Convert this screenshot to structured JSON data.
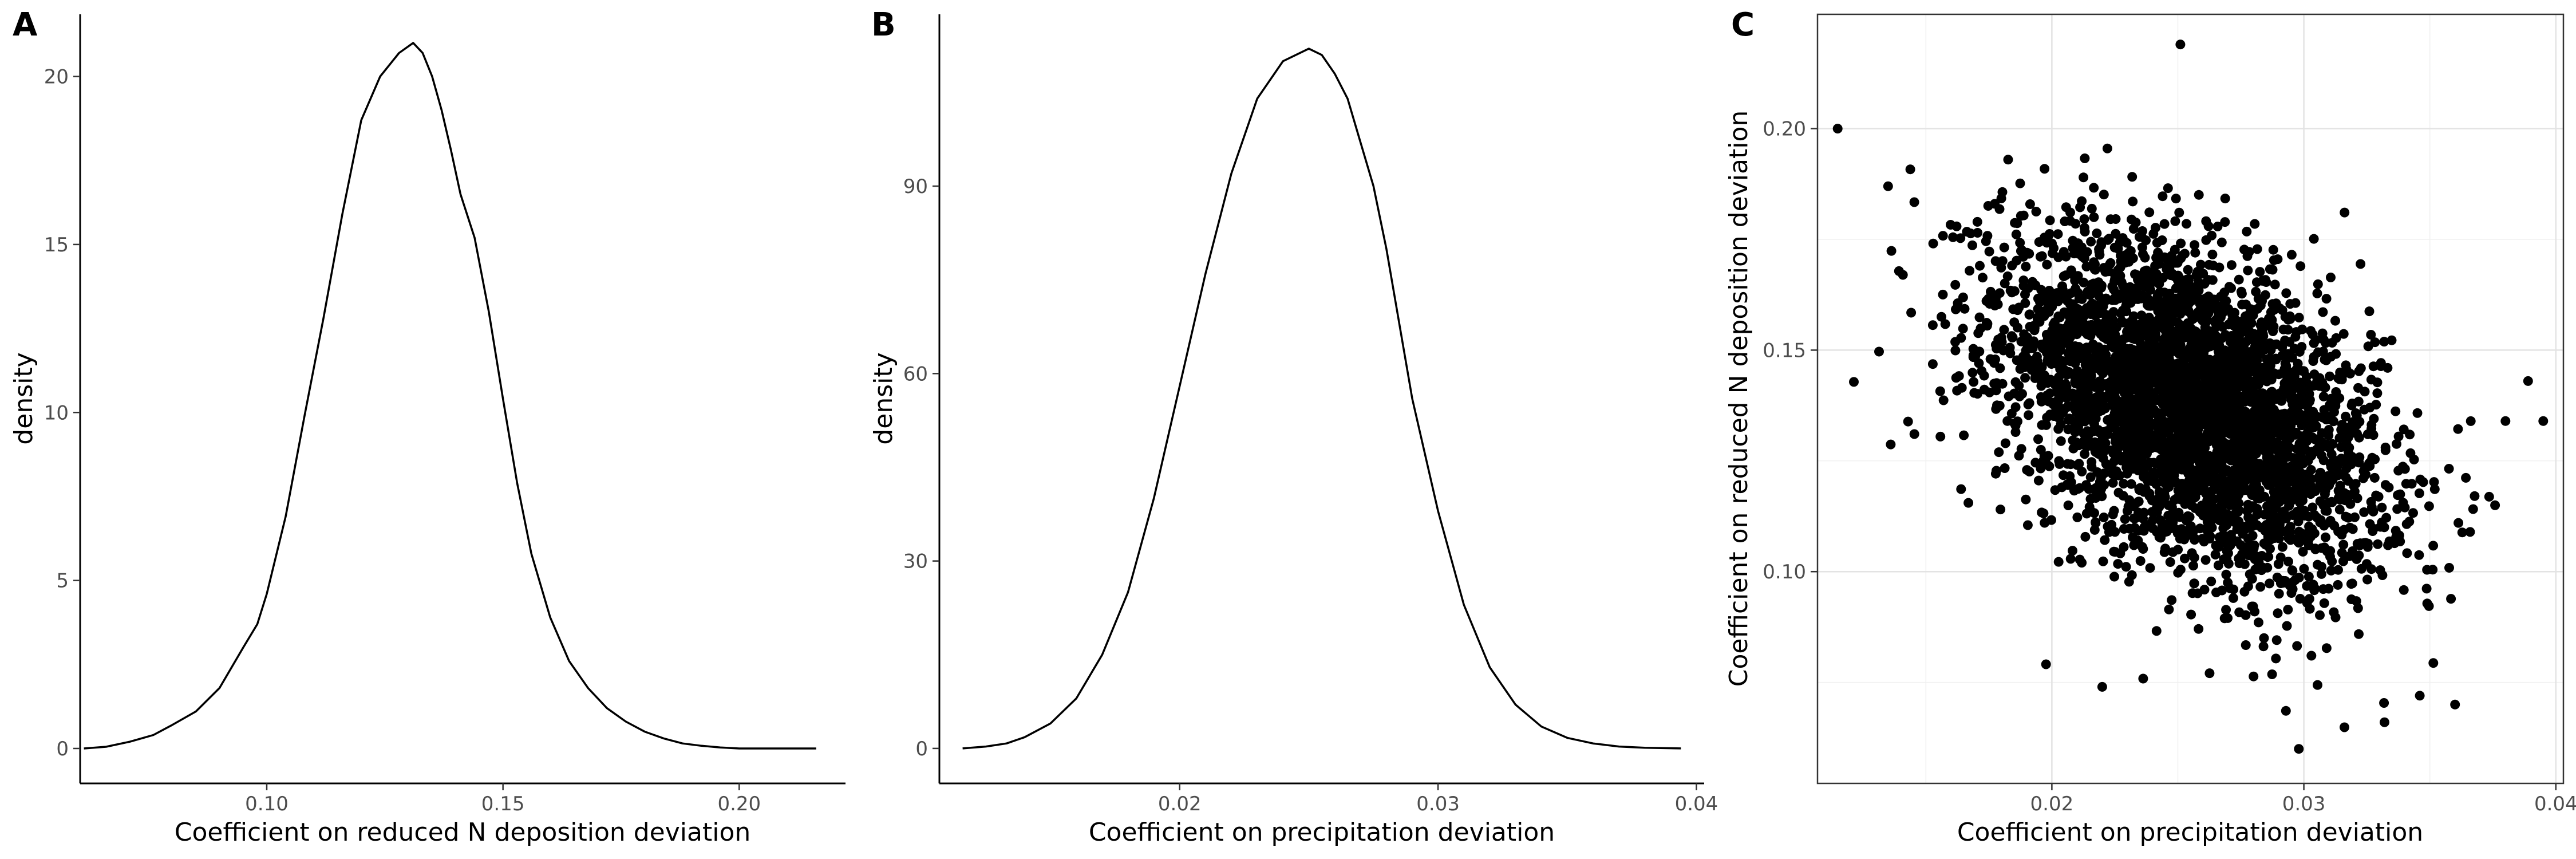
{
  "chart_data": [
    {
      "type": "line",
      "panel": "A",
      "title": "",
      "xlabel": "Coefficient on reduced N deposition deviation",
      "ylabel": "density",
      "xlim": [
        0.0605,
        0.2225
      ],
      "ylim": [
        -1.04,
        21.85
      ],
      "xticks": [
        0.1,
        0.15,
        0.2
      ],
      "xtick_labels": [
        "0.10",
        "0.15",
        "0.20"
      ],
      "yticks": [
        0,
        5,
        10,
        15,
        20
      ],
      "ytick_labels": [
        "0",
        "5",
        "10",
        "15",
        "20"
      ],
      "grid": false,
      "x": [
        0.0613,
        0.066,
        0.071,
        0.076,
        0.08,
        0.085,
        0.09,
        0.095,
        0.098,
        0.1,
        0.104,
        0.108,
        0.112,
        0.116,
        0.12,
        0.124,
        0.128,
        0.131,
        0.133,
        0.135,
        0.137,
        0.139,
        0.141,
        0.144,
        0.147,
        0.15,
        0.153,
        0.156,
        0.16,
        0.164,
        0.168,
        0.172,
        0.176,
        0.18,
        0.184,
        0.188,
        0.192,
        0.196,
        0.2,
        0.205,
        0.21,
        0.2163
      ],
      "y": [
        0.0,
        0.05,
        0.2,
        0.4,
        0.7,
        1.1,
        1.8,
        3.0,
        3.7,
        4.6,
        6.9,
        9.9,
        12.8,
        15.9,
        18.7,
        20.0,
        20.7,
        21.0,
        20.7,
        20.0,
        19.0,
        17.8,
        16.5,
        15.2,
        13.0,
        10.4,
        7.9,
        5.8,
        3.9,
        2.6,
        1.8,
        1.2,
        0.8,
        0.5,
        0.3,
        0.15,
        0.08,
        0.03,
        0.0,
        0.0,
        0.0,
        0.0
      ]
    },
    {
      "type": "line",
      "panel": "B",
      "title": "",
      "xlabel": "Coefficient on precipitation deviation",
      "ylabel": "density",
      "xlim": [
        0.0107,
        0.0403
      ],
      "ylim": [
        -5.6,
        117.5
      ],
      "xticks": [
        0.02,
        0.03,
        0.04
      ],
      "xtick_labels": [
        "0.02",
        "0.03",
        "0.04"
      ],
      "yticks": [
        0,
        30,
        60,
        90
      ],
      "ytick_labels": [
        "0",
        "30",
        "60",
        "90"
      ],
      "grid": false,
      "x": [
        0.0116,
        0.0125,
        0.0133,
        0.014,
        0.015,
        0.016,
        0.017,
        0.018,
        0.019,
        0.02,
        0.021,
        0.022,
        0.023,
        0.024,
        0.025,
        0.0255,
        0.026,
        0.0265,
        0.027,
        0.0275,
        0.028,
        0.029,
        0.03,
        0.031,
        0.032,
        0.033,
        0.034,
        0.035,
        0.036,
        0.037,
        0.038,
        0.0394
      ],
      "y": [
        0,
        0.3,
        0.8,
        1.8,
        4,
        8,
        15,
        25,
        40,
        58,
        76,
        92,
        104,
        110,
        112,
        111,
        108,
        104,
        97,
        90,
        80,
        56,
        38,
        23,
        13,
        7,
        3.5,
        1.7,
        0.8,
        0.3,
        0.1,
        0
      ]
    },
    {
      "type": "scatter",
      "panel": "C",
      "title": "",
      "xlabel": "Coefficient on precipitation deviation",
      "ylabel": "Coefficient on reduced N deposition deviation",
      "xlim": [
        0.0107,
        0.0403
      ],
      "ylim": [
        0.0522,
        0.2258
      ],
      "xticks": [
        0.02,
        0.03,
        0.04
      ],
      "xtick_labels": [
        "0.02",
        "0.03",
        "0.04"
      ],
      "yticks": [
        0.1,
        0.15,
        0.2
      ],
      "ytick_labels": [
        "0.10",
        "0.15",
        "0.20"
      ],
      "grid": true,
      "cloud": {
        "n": 4000,
        "mean_x": 0.0255,
        "sd_x": 0.0037,
        "mean_y": 0.137,
        "sd_y": 0.019,
        "correlation": -0.45
      },
      "outliers": [
        {
          "x": 0.0115,
          "y": 0.2
        },
        {
          "x": 0.0251,
          "y": 0.219
        },
        {
          "x": 0.0395,
          "y": 0.134
        },
        {
          "x": 0.038,
          "y": 0.134
        },
        {
          "x": 0.0298,
          "y": 0.06
        },
        {
          "x": 0.0332,
          "y": 0.066
        },
        {
          "x": 0.036,
          "y": 0.07
        },
        {
          "x": 0.0135,
          "y": 0.187
        },
        {
          "x": 0.022,
          "y": 0.074
        },
        {
          "x": 0.0346,
          "y": 0.072
        }
      ]
    }
  ],
  "panels": {
    "A": {
      "letter": "A"
    },
    "B": {
      "letter": "B"
    },
    "C": {
      "letter": "C"
    }
  }
}
